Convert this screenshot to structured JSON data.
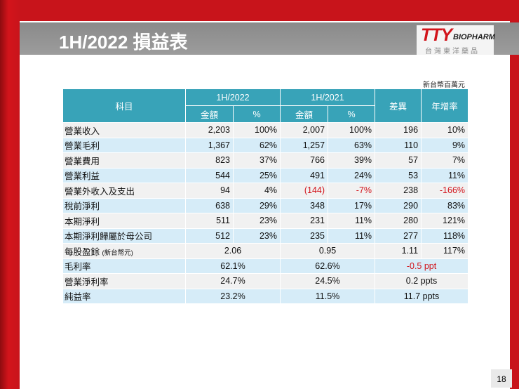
{
  "header": {
    "title": "1H/2022 損益表",
    "logo": {
      "mark": "TTY",
      "brand": "BIOPHARM",
      "company": "台灣東洋藥品"
    }
  },
  "unit": "新台幣百萬元",
  "table": {
    "columns": {
      "item": "科目",
      "period1": "1H/2022",
      "period2": "1H/2021",
      "diff": "差異",
      "growth": "年增率",
      "amount": "金額",
      "pct": "%"
    },
    "rows": [
      {
        "label": "營業收入",
        "cells": [
          "2,203",
          "100%",
          "2,007",
          "100%",
          "196",
          "10%"
        ]
      },
      {
        "label": "營業毛利",
        "cells": [
          "1,367",
          "62%",
          "1,257",
          "63%",
          "110",
          "9%"
        ]
      },
      {
        "label": "營業費用",
        "cells": [
          "823",
          "37%",
          "766",
          "39%",
          "57",
          "7%"
        ]
      },
      {
        "label": "營業利益",
        "cells": [
          "544",
          "25%",
          "491",
          "24%",
          "53",
          "11%"
        ]
      },
      {
        "label": "營業外收入及支出",
        "cells": [
          "94",
          "4%",
          "(144)",
          "-7%",
          "238",
          "-166%"
        ]
      },
      {
        "label": "稅前淨利",
        "cells": [
          "638",
          "29%",
          "348",
          "17%",
          "290",
          "83%"
        ]
      },
      {
        "label": "本期淨利",
        "cells": [
          "511",
          "23%",
          "231",
          "11%",
          "280",
          "121%"
        ]
      },
      {
        "label": "本期淨利歸屬於母公司",
        "cells": [
          "512",
          "23%",
          "235",
          "11%",
          "277",
          "118%"
        ]
      },
      {
        "label": "每股盈餘",
        "note": "(新台幣元)",
        "cells": [
          "2.06",
          "0.95",
          "1.11",
          "117%"
        ]
      },
      {
        "label": "毛利率",
        "cells": [
          "62.1%",
          "62.6%",
          "-0.5 ppt"
        ]
      },
      {
        "label": "營業淨利率",
        "cells": [
          "24.7%",
          "24.5%",
          "0.2 ppts"
        ]
      },
      {
        "label": "純益率",
        "cells": [
          "23.2%",
          "11.5%",
          "11.7 ppts"
        ]
      }
    ]
  },
  "page_number": "18"
}
